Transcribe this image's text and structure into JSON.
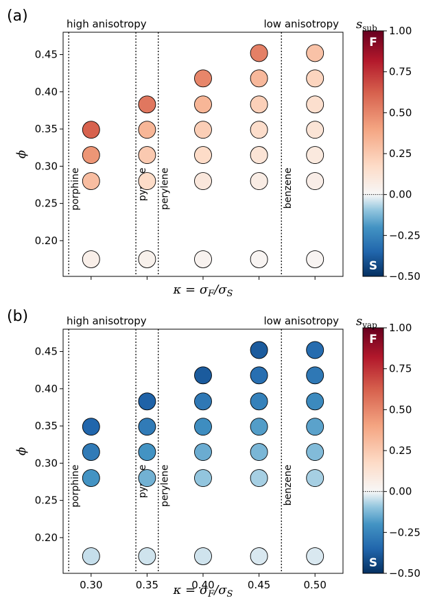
{
  "chart_data": [
    {
      "panel": "(a)",
      "type": "scatter",
      "xlabel_parts": [
        "κ = σ",
        "F",
        "/σ",
        "S"
      ],
      "ylabel": "ϕ",
      "xlim": [
        0.275,
        0.525
      ],
      "ylim": [
        0.152,
        0.48
      ],
      "yticks": [
        "0.20",
        "0.25",
        "0.30",
        "0.35",
        "0.40",
        "0.45"
      ],
      "xticks": [],
      "annotations": {
        "left": "high anisotropy",
        "right": "low anisotropy"
      },
      "molecules": [
        {
          "name": "porphine",
          "x": 0.28
        },
        {
          "name": "pyrene",
          "x": 0.34
        },
        {
          "name": "perylene",
          "x": 0.36
        },
        {
          "name": "benzene",
          "x": 0.47
        }
      ],
      "colorbar": {
        "label_main": "s",
        "label_sub": "sub",
        "ticks": [
          "1.00",
          "0.75",
          "0.50",
          "0.25",
          "0.00",
          "−0.25",
          "−0.50"
        ],
        "top_letter": "F",
        "bottom_letter": "S",
        "range": [
          -0.5,
          1.0
        ]
      },
      "points": [
        {
          "x": 0.3,
          "y": 0.175,
          "v": 0.05
        },
        {
          "x": 0.3,
          "y": 0.28,
          "v": 0.3
        },
        {
          "x": 0.3,
          "y": 0.315,
          "v": 0.45
        },
        {
          "x": 0.3,
          "y": 0.349,
          "v": 0.62
        },
        {
          "x": 0.35,
          "y": 0.175,
          "v": 0.04
        },
        {
          "x": 0.35,
          "y": 0.28,
          "v": 0.17
        },
        {
          "x": 0.35,
          "y": 0.315,
          "v": 0.25
        },
        {
          "x": 0.35,
          "y": 0.349,
          "v": 0.33
        },
        {
          "x": 0.35,
          "y": 0.383,
          "v": 0.55
        },
        {
          "x": 0.4,
          "y": 0.175,
          "v": 0.03
        },
        {
          "x": 0.4,
          "y": 0.28,
          "v": 0.1
        },
        {
          "x": 0.4,
          "y": 0.315,
          "v": 0.17
        },
        {
          "x": 0.4,
          "y": 0.349,
          "v": 0.23
        },
        {
          "x": 0.4,
          "y": 0.383,
          "v": 0.33
        },
        {
          "x": 0.4,
          "y": 0.418,
          "v": 0.5
        },
        {
          "x": 0.45,
          "y": 0.175,
          "v": 0.02
        },
        {
          "x": 0.45,
          "y": 0.28,
          "v": 0.07
        },
        {
          "x": 0.45,
          "y": 0.315,
          "v": 0.12
        },
        {
          "x": 0.45,
          "y": 0.349,
          "v": 0.16
        },
        {
          "x": 0.45,
          "y": 0.383,
          "v": 0.22
        },
        {
          "x": 0.45,
          "y": 0.418,
          "v": 0.32
        },
        {
          "x": 0.45,
          "y": 0.452,
          "v": 0.52
        },
        {
          "x": 0.5,
          "y": 0.175,
          "v": 0.02
        },
        {
          "x": 0.5,
          "y": 0.28,
          "v": 0.06
        },
        {
          "x": 0.5,
          "y": 0.315,
          "v": 0.09
        },
        {
          "x": 0.5,
          "y": 0.349,
          "v": 0.12
        },
        {
          "x": 0.5,
          "y": 0.383,
          "v": 0.15
        },
        {
          "x": 0.5,
          "y": 0.418,
          "v": 0.2
        },
        {
          "x": 0.5,
          "y": 0.452,
          "v": 0.28
        }
      ]
    },
    {
      "panel": "(b)",
      "type": "scatter",
      "xlabel_parts": [
        "κ = σ",
        "F",
        "/σ",
        "S"
      ],
      "ylabel": "ϕ",
      "xlim": [
        0.275,
        0.525
      ],
      "ylim": [
        0.152,
        0.48
      ],
      "yticks": [
        "0.20",
        "0.25",
        "0.30",
        "0.35",
        "0.40",
        "0.45"
      ],
      "xticks": [
        "0.30",
        "0.35",
        "0.40",
        "0.45",
        "0.50"
      ],
      "annotations": {
        "left": "high anisotropy",
        "right": "low anisotropy"
      },
      "molecules": [
        {
          "name": "porphine",
          "x": 0.28
        },
        {
          "name": "pyrene",
          "x": 0.34
        },
        {
          "name": "perylene",
          "x": 0.36
        },
        {
          "name": "benzene",
          "x": 0.47
        }
      ],
      "colorbar": {
        "label_main": "s",
        "label_sub": "vap",
        "ticks": [
          "1.00",
          "0.75",
          "0.50",
          "0.25",
          "0.00",
          "−0.25",
          "−0.50"
        ],
        "top_letter": "F",
        "bottom_letter": "S",
        "range": [
          -0.5,
          1.0
        ]
      },
      "points": [
        {
          "x": 0.3,
          "y": 0.175,
          "v": -0.05
        },
        {
          "x": 0.3,
          "y": 0.28,
          "v": -0.2
        },
        {
          "x": 0.3,
          "y": 0.315,
          "v": -0.28
        },
        {
          "x": 0.3,
          "y": 0.349,
          "v": -0.35
        },
        {
          "x": 0.35,
          "y": 0.175,
          "v": -0.04
        },
        {
          "x": 0.35,
          "y": 0.28,
          "v": -0.14
        },
        {
          "x": 0.35,
          "y": 0.315,
          "v": -0.2
        },
        {
          "x": 0.35,
          "y": 0.349,
          "v": -0.28
        },
        {
          "x": 0.35,
          "y": 0.383,
          "v": -0.36
        },
        {
          "x": 0.4,
          "y": 0.175,
          "v": -0.04
        },
        {
          "x": 0.4,
          "y": 0.28,
          "v": -0.1
        },
        {
          "x": 0.4,
          "y": 0.315,
          "v": -0.15
        },
        {
          "x": 0.4,
          "y": 0.349,
          "v": -0.22
        },
        {
          "x": 0.4,
          "y": 0.383,
          "v": -0.29
        },
        {
          "x": 0.4,
          "y": 0.418,
          "v": -0.38
        },
        {
          "x": 0.45,
          "y": 0.175,
          "v": -0.03
        },
        {
          "x": 0.45,
          "y": 0.28,
          "v": -0.08
        },
        {
          "x": 0.45,
          "y": 0.315,
          "v": -0.13
        },
        {
          "x": 0.45,
          "y": 0.349,
          "v": -0.18
        },
        {
          "x": 0.45,
          "y": 0.383,
          "v": -0.26
        },
        {
          "x": 0.45,
          "y": 0.418,
          "v": -0.32
        },
        {
          "x": 0.45,
          "y": 0.452,
          "v": -0.38
        },
        {
          "x": 0.5,
          "y": 0.175,
          "v": -0.03
        },
        {
          "x": 0.5,
          "y": 0.28,
          "v": -0.08
        },
        {
          "x": 0.5,
          "y": 0.315,
          "v": -0.12
        },
        {
          "x": 0.5,
          "y": 0.349,
          "v": -0.17
        },
        {
          "x": 0.5,
          "y": 0.383,
          "v": -0.23
        },
        {
          "x": 0.5,
          "y": 0.418,
          "v": -0.29
        },
        {
          "x": 0.5,
          "y": 0.452,
          "v": -0.33
        }
      ]
    }
  ]
}
